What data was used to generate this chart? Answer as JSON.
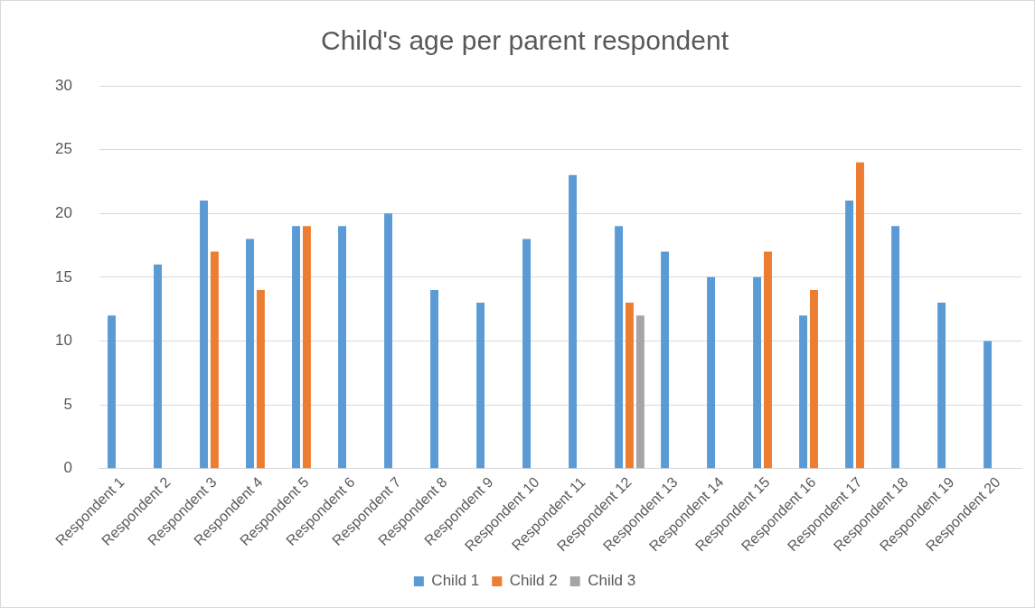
{
  "chart_data": {
    "type": "bar",
    "title": "Child's age per parent respondent",
    "categories": [
      "Respondent 1",
      "Respondent 2",
      "Respondent 3",
      "Respondent 4",
      "Respondent 5",
      "Respondent 6",
      "Respondent 7",
      "Respondent 8",
      "Respondent 9",
      "Respondent 10",
      "Respondent 11",
      "Respondent 12",
      "Respondent 13",
      "Respondent 14",
      "Respondent 15",
      "Respondent 16",
      "Respondent 17",
      "Respondent 18",
      "Respondent 19",
      "Respondent 20"
    ],
    "series": [
      {
        "name": "Child 1",
        "color": "#5b9bd5",
        "values": [
          12,
          16,
          21,
          18,
          19,
          19,
          20,
          14,
          13,
          18,
          23,
          19,
          17,
          15,
          15,
          12,
          21,
          19,
          13,
          10
        ]
      },
      {
        "name": "Child 2",
        "color": "#ed7d31",
        "values": [
          null,
          null,
          17,
          14,
          19,
          null,
          null,
          null,
          null,
          null,
          null,
          13,
          null,
          null,
          17,
          14,
          24,
          null,
          null,
          null
        ]
      },
      {
        "name": "Child 3",
        "color": "#a5a5a5",
        "values": [
          null,
          null,
          null,
          null,
          null,
          null,
          null,
          null,
          null,
          null,
          null,
          12,
          null,
          null,
          null,
          null,
          null,
          null,
          null,
          null
        ]
      }
    ],
    "ylim": [
      0,
      30
    ],
    "yticks": [
      0,
      5,
      10,
      15,
      20,
      25,
      30
    ],
    "grid": "y",
    "legend": "bottom"
  }
}
